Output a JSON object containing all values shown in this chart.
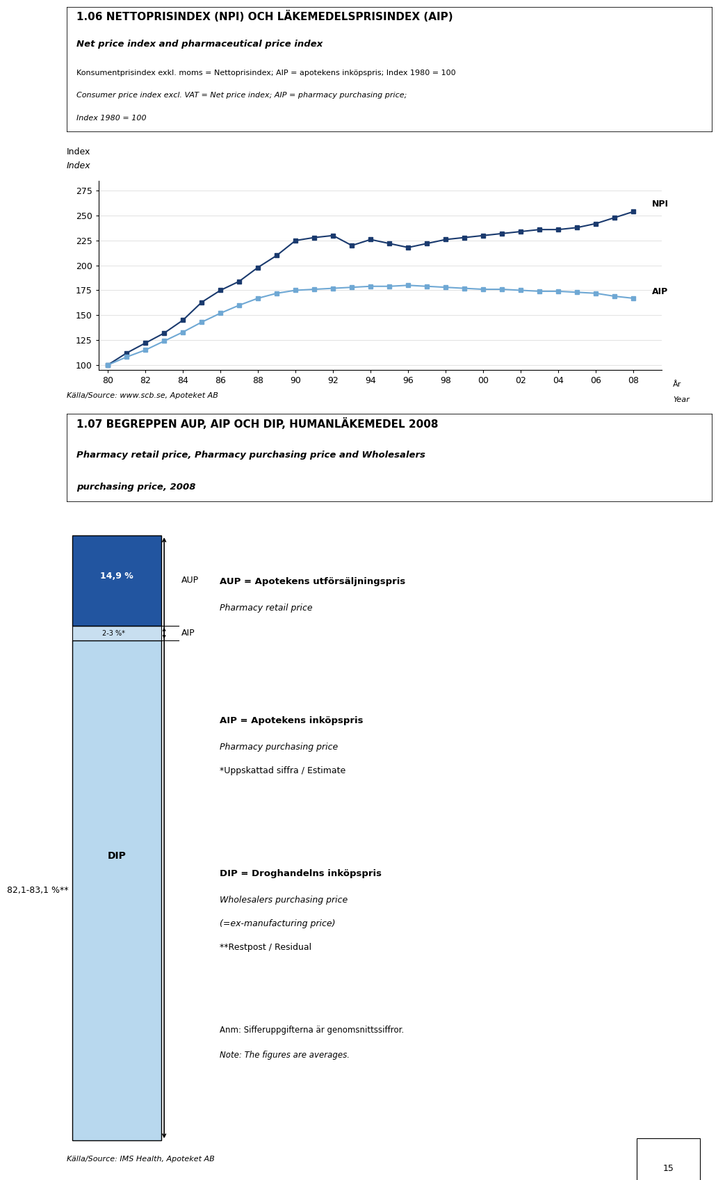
{
  "title1_bold": "1.06 NETTOPRISINDEX (NPI) OCH LÄKEMEDELSPRISINDEX (AIP)",
  "title1_italic": "Net price index and pharmaceutical price index",
  "desc1_line1": "Konsumentprisindex exkl. moms = Nettoprisindex; AIP = apotekens inköpspris; Index 1980 = 100",
  "desc1_line2": "Consumer price index excl. VAT = Net price index; AIP = pharmacy purchasing price;",
  "desc1_line3": "Index 1980 = 100",
  "ylabel_line1": "Index",
  "ylabel_line2": "Index",
  "xlabel_line1": "År",
  "xlabel_line2": "Year",
  "source1": "Källa/Source: www.scb.se, Apoteket AB",
  "npi_data": [
    100,
    112,
    122,
    132,
    145,
    163,
    175,
    184,
    198,
    210,
    225,
    228,
    230,
    220,
    226,
    222,
    218,
    222,
    226,
    228,
    230,
    232,
    234,
    236,
    236,
    238,
    242,
    248,
    254
  ],
  "aip_data": [
    100,
    108,
    115,
    124,
    133,
    143,
    152,
    160,
    167,
    172,
    175,
    176,
    177,
    178,
    179,
    179,
    180,
    179,
    178,
    177,
    176,
    176,
    175,
    174,
    174,
    173,
    172,
    169,
    167
  ],
  "npi_color": "#1a3a6e",
  "aip_color": "#6fa8d4",
  "ylim": [
    95,
    285
  ],
  "yticks": [
    100,
    125,
    150,
    175,
    200,
    225,
    250,
    275
  ],
  "xtick_labels": [
    "80",
    "82",
    "84",
    "86",
    "88",
    "90",
    "92",
    "94",
    "96",
    "98",
    "00",
    "02",
    "04",
    "06",
    "08"
  ],
  "title2_bold": "1.07 BEGREPPEN AUP, AIP OCH DIP, HUMANLÄKEMEDEL 2008",
  "title2_italic1": "Pharmacy retail price, Pharmacy purchasing price and Wholesalers",
  "title2_italic2": "purchasing price, 2008",
  "aup_color": "#2255a0",
  "aip_box_color": "#a8c8e8",
  "dip_box_color": "#b8d8ee",
  "aup_pct": "14,9 %",
  "aip_pct": "2-3 %*",
  "dip_pct": "82,1-83,1 %**",
  "aup_label": "AUP",
  "aip_label": "AIP",
  "dip_label": "DIP",
  "text_aup_bold": "AUP = Apotekens utförsäljningspris",
  "text_aup_italic": "Pharmacy retail price",
  "text_aip_bold": "AIP = Apotekens inköpspris",
  "text_aip_italic": "Pharmacy purchasing price",
  "text_aip_extra": "*Uppskattad siffra / Estimate",
  "text_dip_bold": "DIP = Droghandelns inköpspris",
  "text_dip_italic1": "Wholesalers purchasing price",
  "text_dip_italic2": "(=ex-manufacturing price)",
  "text_dip_extra": "**Restpost / Residual",
  "text_note1": "Anm: Sifferuppgifterna är genomsnittssiffror.",
  "text_note2": "Note: The figures are averages.",
  "source2": "Källa/Source: IMS Health, Apoteket AB",
  "page_number": "15",
  "bg_color": "#ffffff"
}
